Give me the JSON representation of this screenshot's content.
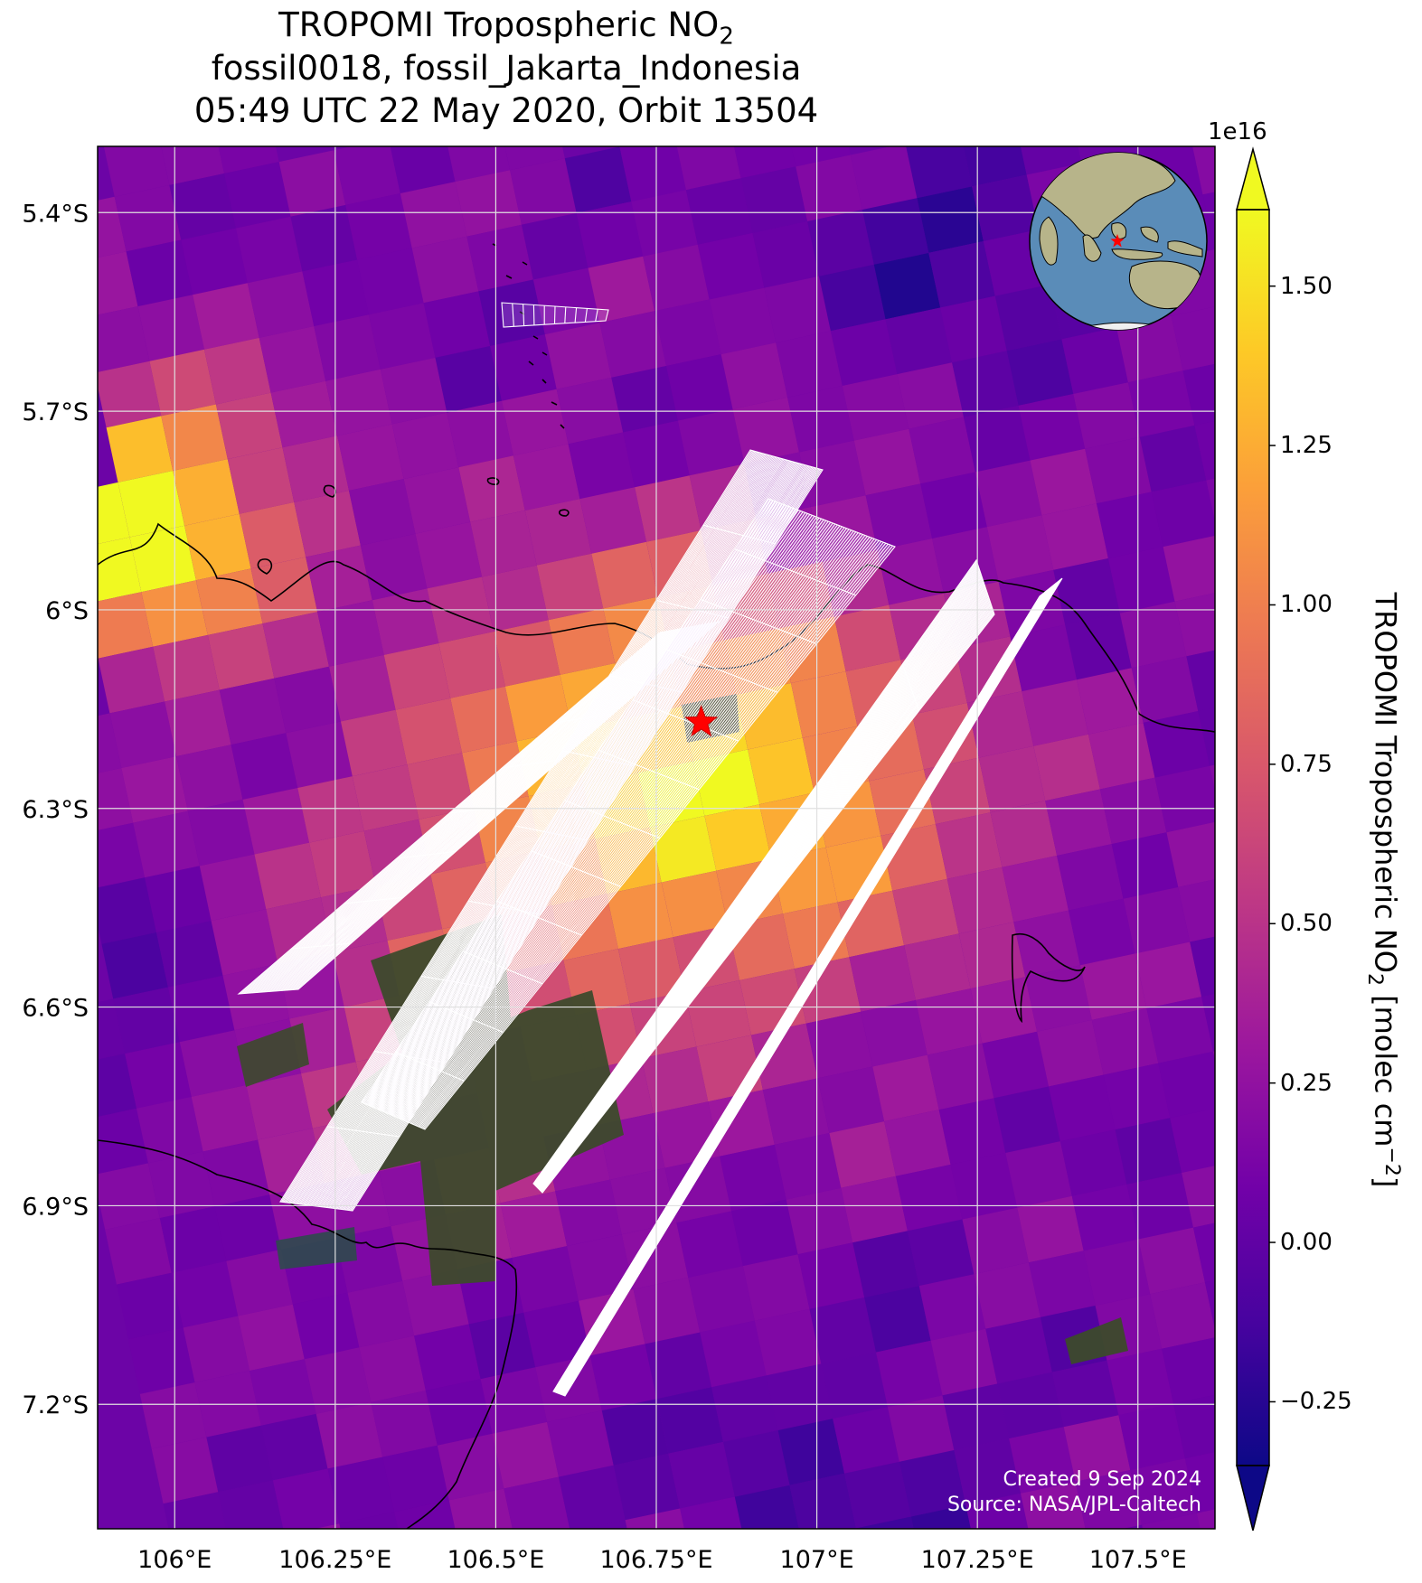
{
  "title": {
    "line1": "TROPOMI Tropospheric NO",
    "line1_sub": "2",
    "line2": "fossil0018, fossil_Jakarta_Indonesia",
    "line3": "05:49 UTC 22 May 2020, Orbit 13504"
  },
  "map": {
    "lon_range": [
      105.88,
      107.62
    ],
    "lat_range": [
      -7.388,
      -5.3
    ],
    "lon_ticks": [
      {
        "value": 106.0,
        "label": "106°E"
      },
      {
        "value": 106.25,
        "label": "106.25°E"
      },
      {
        "value": 106.5,
        "label": "106.5°E"
      },
      {
        "value": 106.75,
        "label": "106.75°E"
      },
      {
        "value": 107.0,
        "label": "107°E"
      },
      {
        "value": 107.25,
        "label": "107.25°E"
      },
      {
        "value": 107.5,
        "label": "107.5°E"
      }
    ],
    "lat_ticks": [
      {
        "value": -5.4,
        "label": "5.4°S"
      },
      {
        "value": -5.7,
        "label": "5.7°S"
      },
      {
        "value": -6.0,
        "label": "6°S"
      },
      {
        "value": -6.3,
        "label": "6.3°S"
      },
      {
        "value": -6.6,
        "label": "6.6°S"
      },
      {
        "value": -6.9,
        "label": "6.9°S"
      },
      {
        "value": -7.2,
        "label": "7.2°S"
      }
    ],
    "target_marker": {
      "lon": 106.82,
      "lat": -6.17,
      "color": "#ff0000"
    },
    "inset_globe": {
      "ocean_color": "#5a8cb8",
      "land_color": "#b7b48a"
    }
  },
  "colorbar": {
    "label": "TROPOMI Tropospheric NO",
    "label_sub": "2",
    "label_unit": " [molec cm",
    "label_sup": "−2",
    "label_end": "]",
    "exponent": "1e16",
    "min": -0.35,
    "max": 1.62,
    "ticks": [
      {
        "value": 1.5,
        "label": "1.50"
      },
      {
        "value": 1.25,
        "label": "1.25"
      },
      {
        "value": 1.0,
        "label": "1.00"
      },
      {
        "value": 0.75,
        "label": "0.75"
      },
      {
        "value": 0.5,
        "label": "0.50"
      },
      {
        "value": 0.25,
        "label": "0.25"
      },
      {
        "value": 0.0,
        "label": "0.00"
      },
      {
        "value": -0.25,
        "label": "−0.25"
      }
    ],
    "colormap": [
      "#0d0887",
      "#46039f",
      "#7201a8",
      "#9c179e",
      "#bd3786",
      "#d8576b",
      "#ed7953",
      "#fb9f3a",
      "#fdca26",
      "#f0f921"
    ]
  },
  "credits": {
    "created": "Created 9 Sep 2024",
    "source": "Source: NASA/JPL-Caltech"
  }
}
